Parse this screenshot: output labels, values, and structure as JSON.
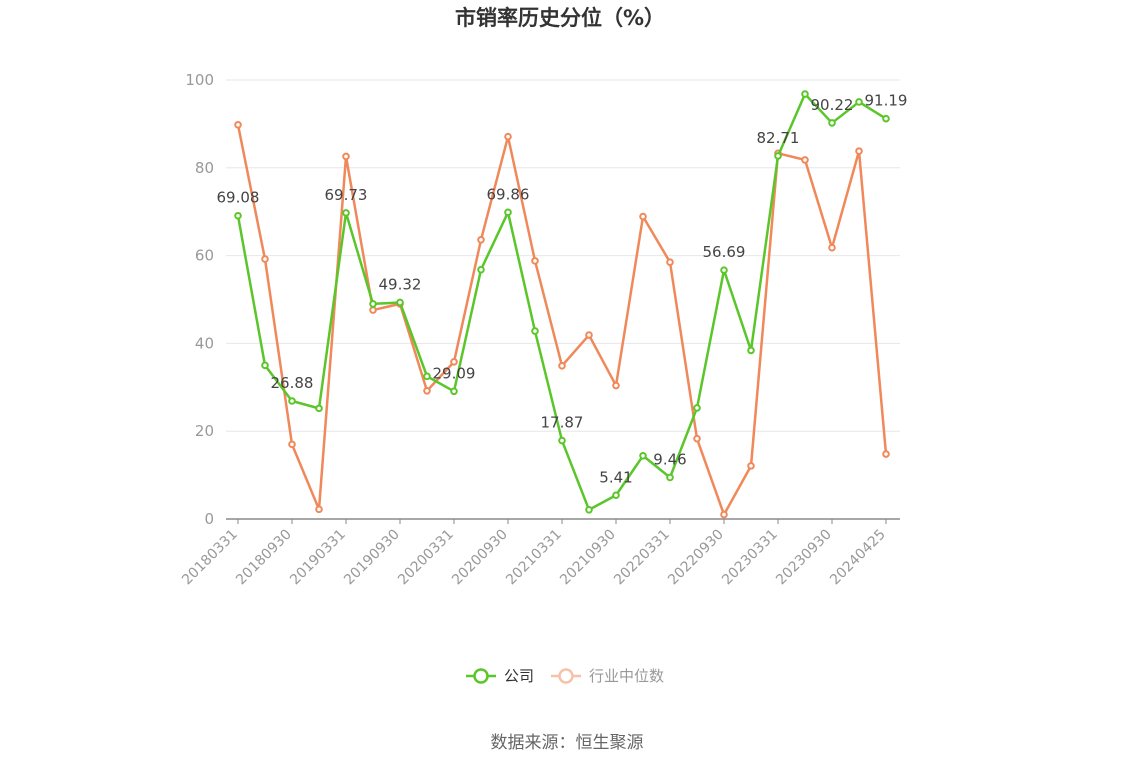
{
  "chart_data": {
    "type": "line",
    "title": "市销率历史分位（%）",
    "xlabel": "",
    "ylabel": "",
    "ylim": [
      0,
      100
    ],
    "yticks": [
      0,
      20,
      40,
      60,
      80,
      100
    ],
    "x": [
      "20180331",
      "20180630",
      "20180930",
      "20181231",
      "20190331",
      "20190630",
      "20190930",
      "20191231",
      "20200331",
      "20200630",
      "20200930",
      "20201231",
      "20210331",
      "20210630",
      "20210930",
      "20211231",
      "20220331",
      "20220630",
      "20220930",
      "20221231",
      "20230331",
      "20230630",
      "20230930",
      "20231231",
      "20240425"
    ],
    "xtick_labels": [
      "20180331",
      "20180930",
      "20190331",
      "20190930",
      "20200331",
      "20200930",
      "20210331",
      "20210930",
      "20220331",
      "20220930",
      "20230331",
      "20230930",
      "20240425"
    ],
    "grid": true,
    "legend_position": "bottom",
    "series": [
      {
        "name": "公司",
        "color": "#5ac62a",
        "values": [
          69.08,
          35.0,
          26.88,
          25.2,
          69.73,
          49.0,
          49.32,
          32.5,
          29.09,
          56.8,
          69.86,
          42.8,
          17.87,
          2.1,
          5.41,
          14.4,
          9.46,
          25.3,
          56.69,
          38.4,
          82.71,
          96.8,
          90.22,
          95.0,
          91.19
        ],
        "labels": {
          "0": "69.08",
          "2": "26.88",
          "4": "69.73",
          "6": "49.32",
          "8": "29.09",
          "10": "69.86",
          "12": "17.87",
          "14": "5.41",
          "16": "9.46",
          "18": "56.69",
          "20": "82.71",
          "22": "90.22",
          "24": "91.19"
        }
      },
      {
        "name": "行业中位数",
        "color": "#f0885a",
        "values": [
          89.8,
          59.2,
          17.0,
          2.2,
          82.6,
          47.6,
          49.0,
          29.2,
          35.8,
          63.6,
          87.1,
          58.8,
          34.9,
          41.9,
          30.4,
          68.9,
          58.5,
          18.3,
          1.0,
          12.1,
          83.3,
          81.8,
          61.8,
          83.8,
          14.8
        ]
      }
    ]
  },
  "source_text": "数据来源：恒生聚源"
}
